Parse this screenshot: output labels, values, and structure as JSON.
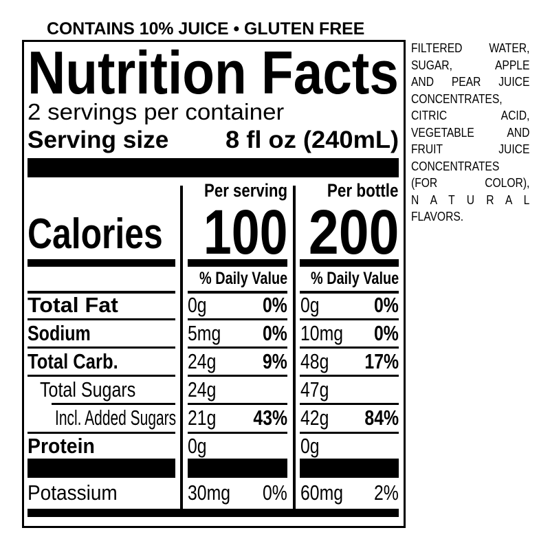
{
  "claims": "CONTAINS 10% JUICE • GLUTEN FREE",
  "title": "Nutrition Facts",
  "servings": "2 servings per container",
  "serving_size": {
    "label": "Serving size",
    "value": "8 fl oz (240mL)"
  },
  "calories_label": "Calories",
  "columns": [
    {
      "header": "Per serving",
      "calories": "100",
      "dv_label": "% Daily Value"
    },
    {
      "header": "Per bottle",
      "calories": "200",
      "dv_label": "% Daily Value"
    }
  ],
  "nutrients": [
    {
      "name": "Total Fat",
      "bold": true,
      "serving": {
        "amount": "0g",
        "dv": "0%"
      },
      "bottle": {
        "amount": "0g",
        "dv": "0%"
      }
    },
    {
      "name": "Sodium",
      "bold": true,
      "serving": {
        "amount": "5mg",
        "dv": "0%"
      },
      "bottle": {
        "amount": "10mg",
        "dv": "0%"
      }
    },
    {
      "name": "Total Carb.",
      "bold": true,
      "serving": {
        "amount": "24g",
        "dv": "9%"
      },
      "bottle": {
        "amount": "48g",
        "dv": "17%"
      }
    },
    {
      "name": "Total Sugars",
      "bold": false,
      "serving": {
        "amount": "24g",
        "dv": ""
      },
      "bottle": {
        "amount": "47g",
        "dv": ""
      }
    },
    {
      "name": "Incl. Added Sugars",
      "bold": false,
      "serving": {
        "amount": "21g",
        "dv": "43%"
      },
      "bottle": {
        "amount": "42g",
        "dv": "84%"
      }
    },
    {
      "name": "Protein",
      "bold": true,
      "serving": {
        "amount": "0g",
        "dv": ""
      },
      "bottle": {
        "amount": "0g",
        "dv": ""
      }
    },
    {
      "name": "Potassium",
      "bold": false,
      "serving": {
        "amount": "30mg",
        "dv": "0%"
      },
      "bottle": {
        "amount": "60mg",
        "dv": "2%"
      }
    }
  ],
  "ingredients_lines": [
    "FILTERED WATER,",
    "SUGAR, APPLE",
    "AND PEAR JUICE",
    "CONCENTRATES,",
    "CITRIC ACID,",
    "VEGETABLE AND",
    "FRUIT JUICE",
    "CONCENTRATES",
    "(FOR COLOR),",
    "N A T U R A L",
    "FLAVORS."
  ]
}
